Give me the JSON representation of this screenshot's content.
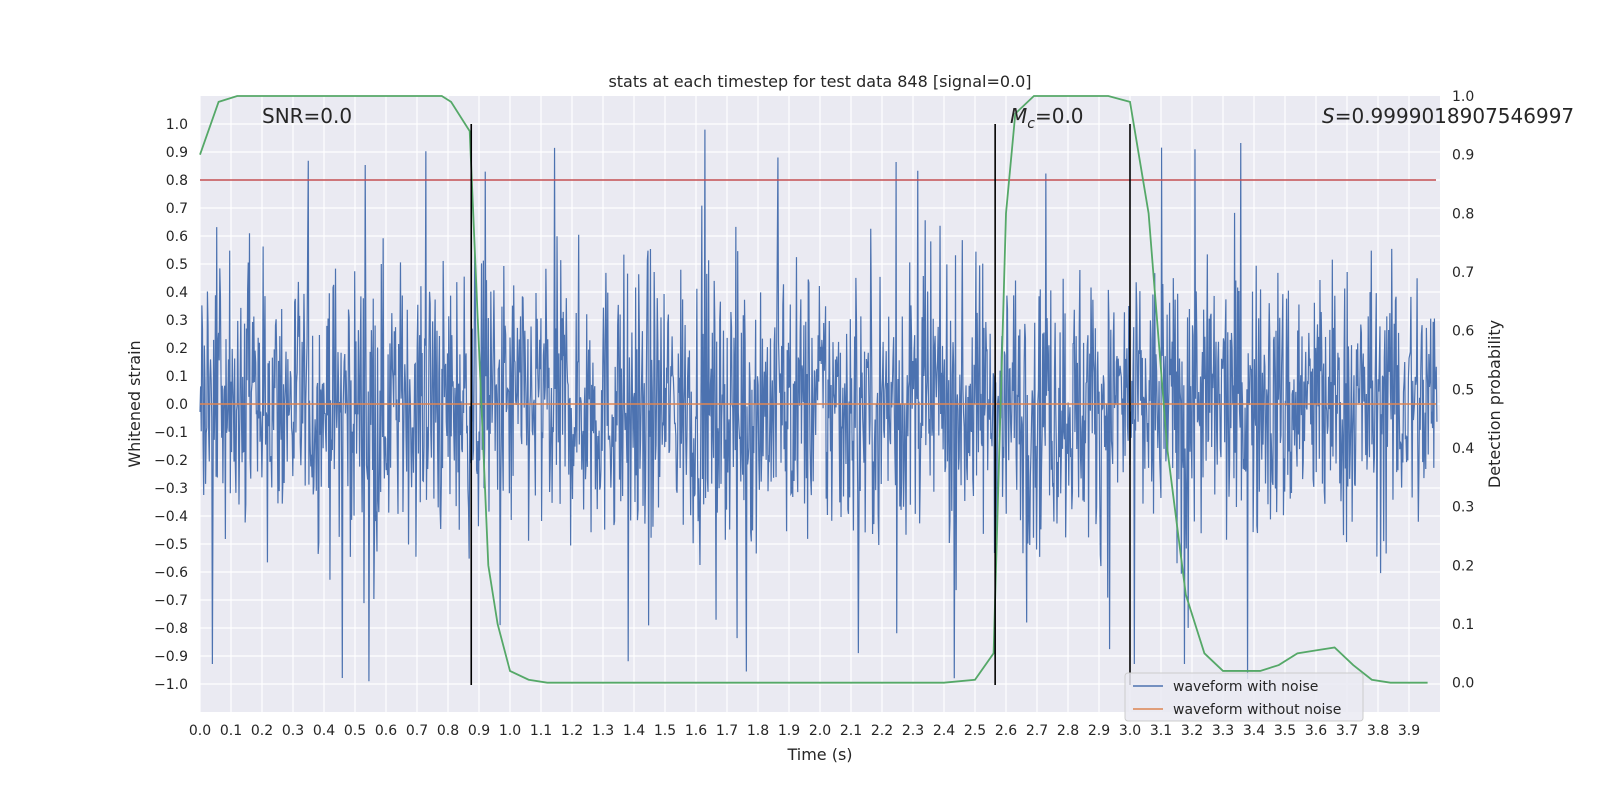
{
  "chart_data": {
    "type": "line",
    "title": "stats at each timestep for test data 848 [signal=0.0]",
    "xlabel": "Time (s)",
    "ylabel": "Whitened strain",
    "y2label": "Detection probability",
    "xlim": [
      0.0,
      4.0
    ],
    "ylim": [
      -1.1,
      1.1
    ],
    "y2lim": [
      -0.05,
      1.0
    ],
    "grid": true,
    "legend_position": "lower-right",
    "x_ticks": [
      "0.0",
      "0.1",
      "0.2",
      "0.3",
      "0.4",
      "0.5",
      "0.6",
      "0.7",
      "0.8",
      "0.9",
      "1.0",
      "1.1",
      "1.2",
      "1.3",
      "1.4",
      "1.5",
      "1.6",
      "1.7",
      "1.8",
      "1.9",
      "2.0",
      "2.1",
      "2.2",
      "2.3",
      "2.4",
      "2.5",
      "2.6",
      "2.7",
      "2.8",
      "2.9",
      "3.0",
      "3.1",
      "3.2",
      "3.3",
      "3.4",
      "3.5",
      "3.6",
      "3.7",
      "3.8",
      "3.9"
    ],
    "y_ticks": [
      "1.0",
      "0.9",
      "0.8",
      "0.7",
      "0.6",
      "0.5",
      "0.4",
      "0.3",
      "0.2",
      "0.1",
      "0.0",
      "−0.1",
      "−0.2",
      "−0.3",
      "−0.4",
      "−0.5",
      "−0.6",
      "−0.7",
      "−0.8",
      "−0.9",
      "−1.0"
    ],
    "y2_ticks": [
      "1.0",
      "0.9",
      "0.8",
      "0.7",
      "0.6",
      "0.5",
      "0.4",
      "0.3",
      "0.2",
      "0.1",
      "0.0"
    ],
    "annotations": {
      "snr": "SNR=0.0",
      "mc_symbol": "M",
      "mc_sub": "c",
      "mc_value": "=0.0",
      "s_symbol": "S",
      "s_value": "=0.9999018907546997"
    },
    "series": [
      {
        "name": "waveform with noise",
        "color": "#4c72b0",
        "description": "dense noise signal, approx. symmetric around 0, peaks ~ ±1.0"
      },
      {
        "name": "waveform without noise",
        "color": "#dd8452",
        "y_constant": 0.0
      },
      {
        "name": "detection probability",
        "color": "#55a868",
        "axis": "right",
        "x": [
          0.0,
          0.06,
          0.12,
          0.18,
          0.24,
          0.3,
          0.36,
          0.42,
          0.48,
          0.54,
          0.6,
          0.66,
          0.72,
          0.78,
          0.81,
          0.87,
          0.93,
          0.96,
          1.0,
          1.06,
          1.12,
          1.2,
          1.5,
          1.8,
          2.1,
          2.4,
          2.5,
          2.56,
          2.6,
          2.63,
          2.69,
          2.75,
          2.81,
          2.87,
          2.93,
          3.0,
          3.06,
          3.12,
          3.18,
          3.24,
          3.3,
          3.36,
          3.42,
          3.48,
          3.54,
          3.6,
          3.66,
          3.72,
          3.78,
          3.84,
          3.9,
          3.96
        ],
        "y": [
          0.9,
          0.99,
          1.0,
          1.0,
          1.0,
          1.0,
          1.0,
          1.0,
          1.0,
          1.0,
          1.0,
          1.0,
          1.0,
          1.0,
          0.99,
          0.94,
          0.2,
          0.1,
          0.02,
          0.005,
          0.0,
          0.0,
          0.0,
          0.0,
          0.0,
          0.0,
          0.005,
          0.05,
          0.8,
          0.97,
          1.0,
          1.0,
          1.0,
          1.0,
          1.0,
          0.99,
          0.8,
          0.4,
          0.15,
          0.05,
          0.02,
          0.02,
          0.02,
          0.03,
          0.05,
          0.055,
          0.06,
          0.03,
          0.005,
          0.0,
          0.0,
          0.0
        ]
      }
    ],
    "threshold_line": {
      "y": 0.8,
      "color": "#c44e52"
    },
    "vertical_lines_x": [
      0.875,
      2.565,
      3.0
    ]
  }
}
